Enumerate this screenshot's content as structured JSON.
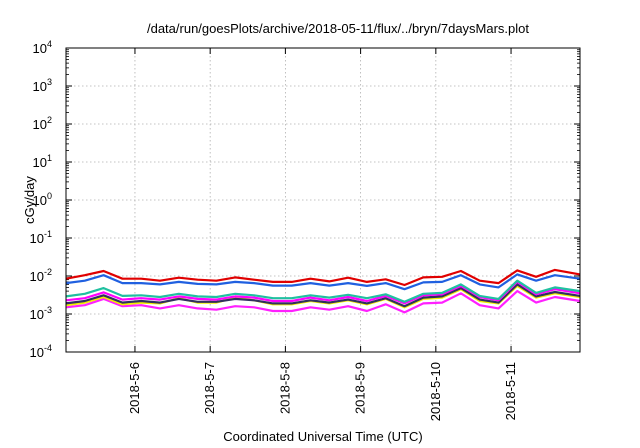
{
  "chart_data": {
    "type": "line",
    "title": "/data/run/goesPlots/archive/2018-05-11/flux/../bryn/7daysMars.plot",
    "xlabel": "Coordinated Universal Time (UTC)",
    "ylabel": "cGy/day",
    "y_scale": "log",
    "ylim": [
      0.0001,
      10000
    ],
    "y_ticks": [
      {
        "value": 0.0001,
        "base": "10",
        "exp": "-4"
      },
      {
        "value": 0.001,
        "base": "10",
        "exp": "-3"
      },
      {
        "value": 0.01,
        "base": "10",
        "exp": "-2"
      },
      {
        "value": 0.1,
        "base": "10",
        "exp": "-1"
      },
      {
        "value": 1,
        "base": "10",
        "exp": "0"
      },
      {
        "value": 10,
        "base": "10",
        "exp": "1"
      },
      {
        "value": 100,
        "base": "10",
        "exp": "2"
      },
      {
        "value": 1000,
        "base": "10",
        "exp": "3"
      },
      {
        "value": 10000,
        "base": "10",
        "exp": "4"
      }
    ],
    "xlim": [
      "2018-05-05 02:00",
      "2018-05-11 22:00"
    ],
    "x_ticks": [
      {
        "value": "2018-05-06",
        "label": "2018-5-6"
      },
      {
        "value": "2018-05-07",
        "label": "2018-5-7"
      },
      {
        "value": "2018-05-08",
        "label": "2018-5-8"
      },
      {
        "value": "2018-05-09",
        "label": "2018-5-9"
      },
      {
        "value": "2018-05-10",
        "label": "2018-5-10"
      },
      {
        "value": "2018-05-11",
        "label": "2018-5-11"
      }
    ],
    "grid": true,
    "legend": "none",
    "x": [
      "2018-05-05 02:00",
      "2018-05-05 08:00",
      "2018-05-05 14:00",
      "2018-05-05 20:00",
      "2018-05-06 02:00",
      "2018-05-06 08:00",
      "2018-05-06 14:00",
      "2018-05-06 20:00",
      "2018-05-07 02:00",
      "2018-05-07 08:00",
      "2018-05-07 14:00",
      "2018-05-07 20:00",
      "2018-05-08 02:00",
      "2018-05-08 08:00",
      "2018-05-08 14:00",
      "2018-05-08 20:00",
      "2018-05-09 02:00",
      "2018-05-09 08:00",
      "2018-05-09 14:00",
      "2018-05-09 20:00",
      "2018-05-10 02:00",
      "2018-05-10 08:00",
      "2018-05-10 14:00",
      "2018-05-10 20:00",
      "2018-05-11 02:00",
      "2018-05-11 08:00",
      "2018-05-11 14:00",
      "2018-05-11 22:00"
    ],
    "series": [
      {
        "color": "#e00000",
        "values": [
          0.0085,
          0.0105,
          0.0135,
          0.0085,
          0.0085,
          0.0075,
          0.009,
          0.008,
          0.0075,
          0.0092,
          0.008,
          0.007,
          0.007,
          0.0085,
          0.0072,
          0.009,
          0.007,
          0.0082,
          0.0058,
          0.0092,
          0.0095,
          0.0135,
          0.0075,
          0.0065,
          0.014,
          0.0095,
          0.0145,
          0.011
        ]
      },
      {
        "color": "#2060e0",
        "values": [
          0.0065,
          0.0075,
          0.0105,
          0.0065,
          0.0065,
          0.006,
          0.007,
          0.0062,
          0.006,
          0.007,
          0.0065,
          0.0056,
          0.0056,
          0.0065,
          0.0056,
          0.0065,
          0.0055,
          0.0065,
          0.0045,
          0.0068,
          0.007,
          0.0105,
          0.006,
          0.005,
          0.011,
          0.0075,
          0.0105,
          0.0085
        ]
      },
      {
        "color": "#20c0a0",
        "values": [
          0.0029,
          0.0034,
          0.0048,
          0.003,
          0.0031,
          0.0028,
          0.0034,
          0.0029,
          0.0028,
          0.0034,
          0.0031,
          0.0026,
          0.0026,
          0.0031,
          0.0027,
          0.0032,
          0.0026,
          0.0033,
          0.0021,
          0.0034,
          0.0036,
          0.006,
          0.003,
          0.0025,
          0.0075,
          0.0036,
          0.005,
          0.004
        ]
      },
      {
        "color": "#ff00ff",
        "values": [
          0.0023,
          0.0026,
          0.0037,
          0.0024,
          0.0026,
          0.0024,
          0.0029,
          0.0025,
          0.0024,
          0.0029,
          0.0027,
          0.0022,
          0.0022,
          0.0027,
          0.0023,
          0.0028,
          0.0022,
          0.003,
          0.0019,
          0.0031,
          0.0033,
          0.0055,
          0.0028,
          0.0023,
          0.007,
          0.0033,
          0.0045,
          0.0035
        ]
      },
      {
        "color": "#303060",
        "values": [
          0.0019,
          0.0022,
          0.0031,
          0.002,
          0.0022,
          0.002,
          0.0025,
          0.0021,
          0.0021,
          0.0025,
          0.0023,
          0.0019,
          0.0019,
          0.0023,
          0.002,
          0.0024,
          0.0019,
          0.0026,
          0.0016,
          0.0027,
          0.0029,
          0.0048,
          0.0024,
          0.002,
          0.006,
          0.0029,
          0.0038,
          0.003
        ]
      },
      {
        "color": "#f0f000",
        "values": [
          0.0017,
          0.002,
          0.0028,
          0.0018,
          0.002,
          0.0019,
          0.0026,
          0.002,
          0.002,
          0.0027,
          0.0023,
          0.0018,
          0.0018,
          0.0022,
          0.0019,
          0.0023,
          0.0018,
          0.0025,
          0.0015,
          0.0025,
          0.0027,
          0.0045,
          0.0022,
          0.0019,
          0.0055,
          0.0027,
          0.0035,
          0.0028
        ]
      },
      {
        "color": "#ff20ff",
        "values": [
          0.0015,
          0.0017,
          0.0025,
          0.0016,
          0.0017,
          0.0014,
          0.0017,
          0.0014,
          0.0013,
          0.0016,
          0.0015,
          0.0012,
          0.0012,
          0.0015,
          0.0013,
          0.0016,
          0.0012,
          0.0018,
          0.0011,
          0.0019,
          0.002,
          0.0035,
          0.0017,
          0.0014,
          0.004,
          0.002,
          0.0028,
          0.0022
        ]
      }
    ]
  }
}
